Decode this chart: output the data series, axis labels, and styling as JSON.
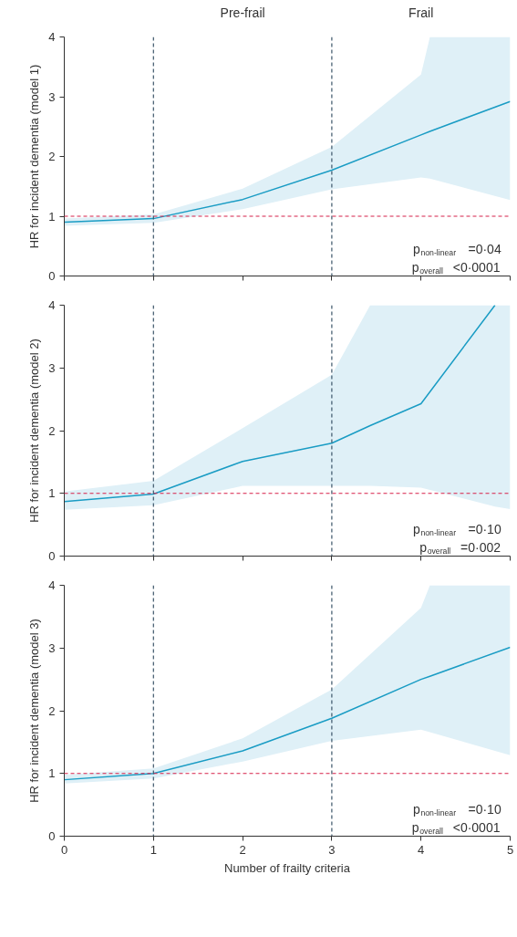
{
  "chart_data": [
    {
      "type": "line",
      "ylabel": "HR for incident dementia (model 1)",
      "xlim": [
        0,
        5
      ],
      "xticks": [
        0,
        1,
        2,
        3,
        4,
        5
      ],
      "ylim": [
        0,
        4
      ],
      "yticks": [
        0,
        1,
        2,
        3,
        4
      ],
      "grid": false,
      "tick_labels": "y",
      "series": [
        {
          "color": "#1a9cc4",
          "x": [
            0,
            1,
            2,
            3,
            4,
            4.1,
            5
          ],
          "values": [
            0.9,
            0.96,
            1.28,
            1.77,
            2.36,
            2.42,
            2.92
          ],
          "lower": [
            0.84,
            0.89,
            1.12,
            1.45,
            1.65,
            1.63,
            1.27
          ],
          "upper": [
            0.96,
            1.03,
            1.46,
            2.16,
            3.37,
            4,
            4
          ]
        }
      ],
      "ref_lines": [
        {
          "axis": "y",
          "value": 1,
          "color": "#d6204a",
          "line_style": "dashed"
        },
        {
          "axis": "x",
          "value": 1,
          "color": "#3b5468",
          "line_style": "dashed"
        },
        {
          "axis": "x",
          "value": 3,
          "color": "#3b5468",
          "line_style": "dashed"
        }
      ],
      "annotations": [
        "Pre-frail",
        "Frail",
        "p$_{non-linear}$=0·04",
        "p$_{overall}$<0·0001"
      ]
    },
    {
      "type": "line",
      "ylabel": "HR for incident dementia (model 2)",
      "xlim": [
        0,
        5
      ],
      "xticks": [
        0,
        1,
        2,
        3,
        4,
        5
      ],
      "ylim": [
        0,
        4
      ],
      "yticks": [
        0,
        1,
        2,
        3,
        4
      ],
      "grid": false,
      "tick_labels": "y",
      "series": [
        {
          "color": "#1a9cc4",
          "x": [
            0,
            1,
            2,
            3,
            3.43,
            4,
            4.83,
            5
          ],
          "values": [
            0.87,
            0.99,
            1.51,
            1.8,
            2.08,
            2.43,
            4,
            null
          ],
          "lower": [
            0.74,
            0.81,
            1.12,
            1.12,
            1.12,
            1.09,
            0.79,
            0.75
          ],
          "upper": [
            1.03,
            1.2,
            2.04,
            2.89,
            4,
            4,
            4,
            4
          ]
        }
      ],
      "ref_lines": [
        {
          "axis": "y",
          "value": 1,
          "color": "#d6204a",
          "line_style": "dashed"
        },
        {
          "axis": "x",
          "value": 1,
          "color": "#3b5468",
          "line_style": "dashed"
        },
        {
          "axis": "x",
          "value": 3,
          "color": "#3b5468",
          "line_style": "dashed"
        }
      ],
      "annotations": [
        "p$_{non-linear}$=0·10",
        "p$_{overall}$=0·002"
      ]
    },
    {
      "type": "line",
      "ylabel": "HR for incident dementia (model 3)",
      "xlabel": "Number of frailty criteria",
      "xlim": [
        0,
        5
      ],
      "xticks": [
        0,
        1,
        2,
        3,
        4,
        5
      ],
      "ylim": [
        0,
        4
      ],
      "yticks": [
        0,
        1,
        2,
        3,
        4
      ],
      "grid": false,
      "series": [
        {
          "color": "#1a9cc4",
          "x": [
            0,
            1,
            2,
            3,
            4,
            4.1,
            5
          ],
          "values": [
            0.9,
            1.0,
            1.36,
            1.88,
            2.5,
            2.55,
            3.01
          ],
          "lower": [
            0.84,
            0.92,
            1.19,
            1.52,
            1.7,
            1.66,
            1.29
          ],
          "upper": [
            0.98,
            1.08,
            1.56,
            2.34,
            3.64,
            4,
            4
          ]
        }
      ],
      "ref_lines": [
        {
          "axis": "y",
          "value": 1,
          "color": "#d6204a",
          "line_style": "dashed"
        },
        {
          "axis": "x",
          "value": 1,
          "color": "#3b5468",
          "line_style": "dashed"
        },
        {
          "axis": "x",
          "value": 3,
          "color": "#3b5468",
          "line_style": "dashed"
        }
      ],
      "annotations": [
        "p$_{non-linear}$=0·10",
        "p$_{overall}$<0·0001"
      ]
    }
  ]
}
